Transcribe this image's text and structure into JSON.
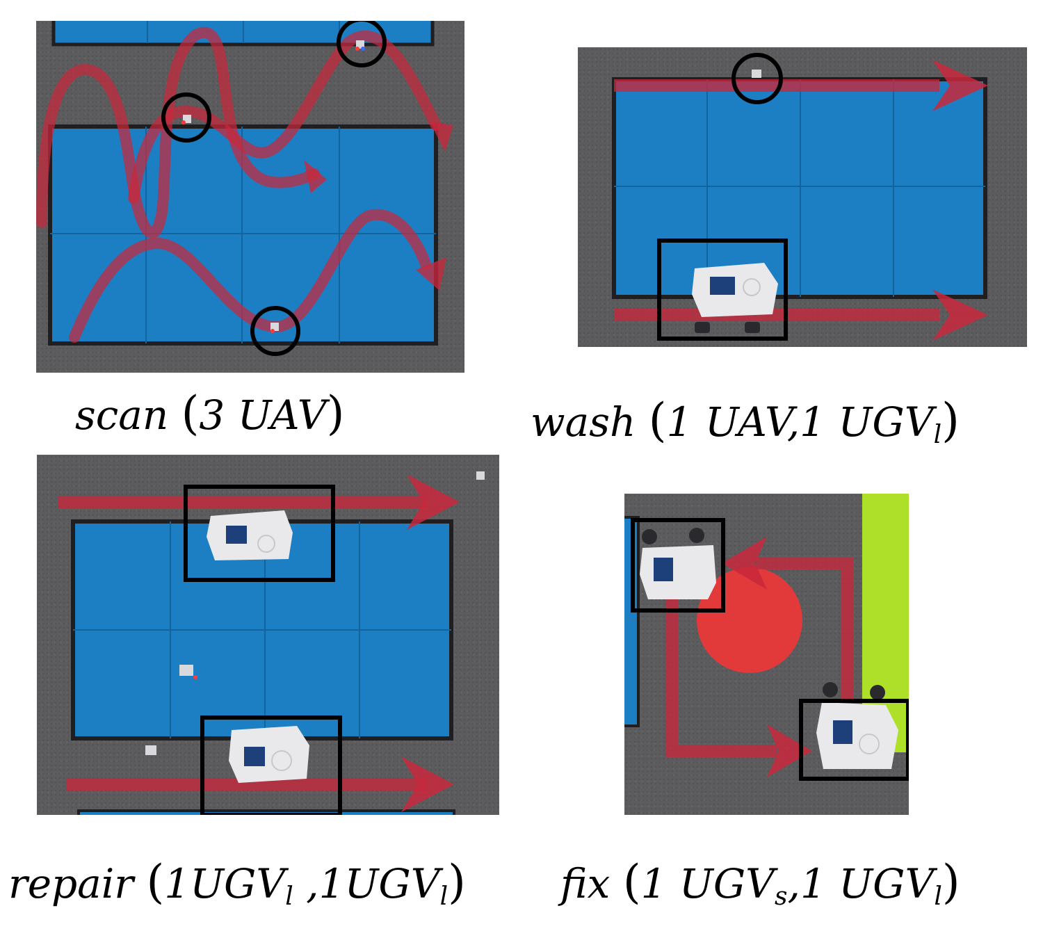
{
  "figure": {
    "panels": [
      {
        "id": "scan",
        "task": "scan",
        "agents": "3 UAV",
        "markers": [
          "uav-circle",
          "uav-circle",
          "uav-circle"
        ]
      },
      {
        "id": "wash",
        "task": "wash",
        "agents_a": "1 UAV,1 UGV",
        "agents_a_sub": "l",
        "markers": [
          "uav-circle",
          "ugv-box"
        ]
      },
      {
        "id": "repair",
        "task": "repair",
        "agent_1": "1UGV",
        "agent_1_sub": "l",
        "sep": " ,",
        "agent_2": "1UGV",
        "agent_2_sub": "l",
        "markers": [
          "ugv-box",
          "ugv-box"
        ]
      },
      {
        "id": "fix",
        "task": "fix",
        "agent_1": "1 UGV",
        "agent_1_sub": "s",
        "sep": ",",
        "agent_2": "1 UGV",
        "agent_2_sub": "l",
        "markers": [
          "ugv-box",
          "ugv-box"
        ]
      }
    ],
    "colors": {
      "floor": "#5c5c5e",
      "mat": "#1c7fc3",
      "path": "#c8283c",
      "marker": "#000000",
      "target_disc": "#e23a3a",
      "zone": "#aee02a"
    }
  }
}
